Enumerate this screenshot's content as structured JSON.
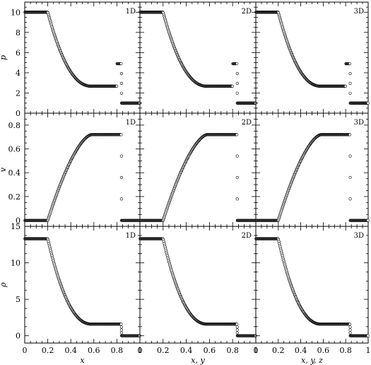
{
  "chart_data": {
    "type": "scatter",
    "layout": "3x3 grid, shared axes",
    "columns": [
      {
        "label": "1D",
        "xlabel": "x"
      },
      {
        "label": "2D",
        "xlabel": "x, y"
      },
      {
        "label": "3D",
        "xlabel": "x, y, z"
      }
    ],
    "x_ticks": [
      "0",
      "0.2",
      "0.4",
      "0.6",
      "0.8",
      "1"
    ],
    "xlim": [
      0,
      1
    ],
    "rows": [
      {
        "ylabel": "p",
        "ylim": [
          0,
          11
        ],
        "yticks": [
          0,
          2,
          4,
          6,
          8,
          10
        ],
        "plateau_left": 10.0,
        "plateau_post_rarefaction": 2.67,
        "contact_value": 2.67,
        "shocked_shell": 4.9,
        "right_state": 1.0,
        "rarefaction_start_x": 0.2,
        "rarefaction_end_x": 0.58,
        "contact_x": 0.8,
        "shock_x": 0.84
      },
      {
        "ylabel": "v",
        "ylim": [
          -0.05,
          0.9
        ],
        "yticks": [
          0,
          0.2,
          0.4,
          0.6,
          0.8
        ],
        "plateau_left": 0.0,
        "plateau_post_rarefaction": 0.72,
        "right_state": 0.0,
        "rarefaction_start_x": 0.2,
        "rarefaction_end_x": 0.58,
        "shock_x": 0.84
      },
      {
        "ylabel": "ρ",
        "ylim": [
          -1,
          15
        ],
        "yticks": [
          0,
          5,
          10,
          15
        ],
        "plateau_left": 13.3,
        "plateau_post_rarefaction": 1.6,
        "right_state": 0.0,
        "rarefaction_start_x": 0.2,
        "rarefaction_end_x": 0.58,
        "shock_x": 0.84
      }
    ],
    "marker": "open circles",
    "grid": false,
    "legend": "none"
  }
}
